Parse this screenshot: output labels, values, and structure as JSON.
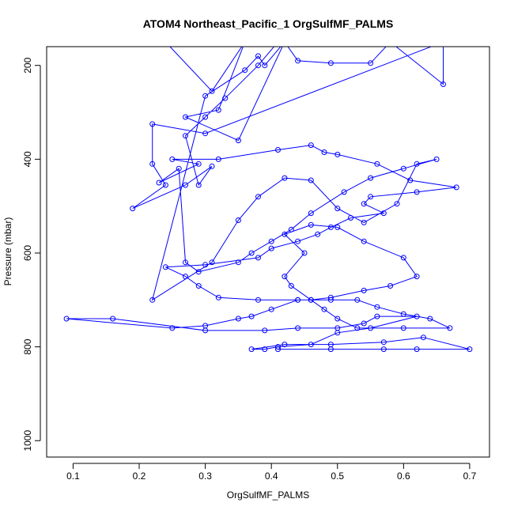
{
  "chart_data": {
    "type": "line",
    "title": "ATOM4 Northeast_Pacific_1 OrgSulfMF_PALMS",
    "xlabel": "OrgSulfMF_PALMS",
    "ylabel": "Pressure (mbar)",
    "xlim": [
      0.06,
      0.73
    ],
    "ylim": [
      1035,
      160
    ],
    "y_reversed": true,
    "x_ticks": [
      "0.1",
      "0.2",
      "0.3",
      "0.4",
      "0.5",
      "0.6",
      "0.7"
    ],
    "y_ticks": [
      "200",
      "400",
      "600",
      "800",
      "1000"
    ],
    "grid": false,
    "legend": "none",
    "color": "#0000ff",
    "x": [
      0.24,
      0.31,
      0.36,
      0.32,
      0.27,
      0.35,
      0.42,
      0.44,
      0.49,
      0.55,
      0.58,
      0.66,
      0.66,
      0.3,
      0.22,
      0.22,
      0.24,
      0.19,
      0.27,
      0.31,
      0.29,
      0.27,
      0.3,
      0.33,
      0.38,
      0.41,
      0.44,
      0.47,
      0.52,
      0.55,
      0.56,
      0.53,
      0.5,
      0.45,
      0.42,
      0.39,
      0.38,
      0.36,
      0.3,
      0.22,
      0.31,
      0.35,
      0.38,
      0.42,
      0.46,
      0.5,
      0.54,
      0.59,
      0.62,
      0.65,
      0.6,
      0.55,
      0.51,
      0.46,
      0.43,
      0.4,
      0.37,
      0.35,
      0.29,
      0.27,
      0.26,
      0.23,
      0.29,
      0.25,
      0.32,
      0.41,
      0.46,
      0.48,
      0.5,
      0.56,
      0.61,
      0.68,
      0.62,
      0.55,
      0.54,
      0.57,
      0.52,
      0.49,
      0.47,
      0.44,
      0.4,
      0.38,
      0.3,
      0.24,
      0.27,
      0.29,
      0.32,
      0.38,
      0.44,
      0.49,
      0.53,
      0.56,
      0.6,
      0.64,
      0.67,
      0.6,
      0.53,
      0.5,
      0.48,
      0.46,
      0.43,
      0.42,
      0.45,
      0.42,
      0.46,
      0.5,
      0.54,
      0.6,
      0.62,
      0.58,
      0.54,
      0.49,
      0.46,
      0.44,
      0.4,
      0.37,
      0.35,
      0.3,
      0.25,
      0.09,
      0.16,
      0.3,
      0.39,
      0.44,
      0.5,
      0.54,
      0.56,
      0.62,
      0.55,
      0.5,
      0.46,
      0.41,
      0.39,
      0.37,
      0.42,
      0.49,
      0.57,
      0.63,
      0.7,
      0.62,
      0.57,
      0.49,
      0.41
    ],
    "y": [
      150,
      255,
      150,
      295,
      310,
      360,
      150,
      190,
      195,
      195,
      150,
      240,
      150,
      345,
      325,
      410,
      455,
      505,
      455,
      415,
      455,
      350,
      310,
      270,
      200,
      150,
      150,
      150,
      150,
      150,
      150,
      150,
      150,
      150,
      150,
      200,
      180,
      210,
      265,
      700,
      620,
      530,
      480,
      440,
      445,
      505,
      535,
      495,
      410,
      400,
      420,
      440,
      470,
      515,
      550,
      575,
      600,
      620,
      640,
      620,
      420,
      450,
      410,
      400,
      400,
      380,
      370,
      385,
      390,
      410,
      445,
      460,
      470,
      480,
      495,
      515,
      525,
      545,
      560,
      575,
      590,
      610,
      625,
      630,
      650,
      670,
      695,
      700,
      700,
      700,
      700,
      715,
      730,
      740,
      760,
      760,
      760,
      740,
      720,
      700,
      670,
      650,
      600,
      560,
      540,
      545,
      575,
      610,
      650,
      670,
      680,
      695,
      700,
      700,
      720,
      735,
      740,
      755,
      760,
      740,
      740,
      765,
      765,
      760,
      760,
      750,
      735,
      735,
      760,
      770,
      795,
      800,
      805,
      805,
      795,
      795,
      790,
      780,
      805,
      805,
      805,
      805,
      805
    ]
  }
}
